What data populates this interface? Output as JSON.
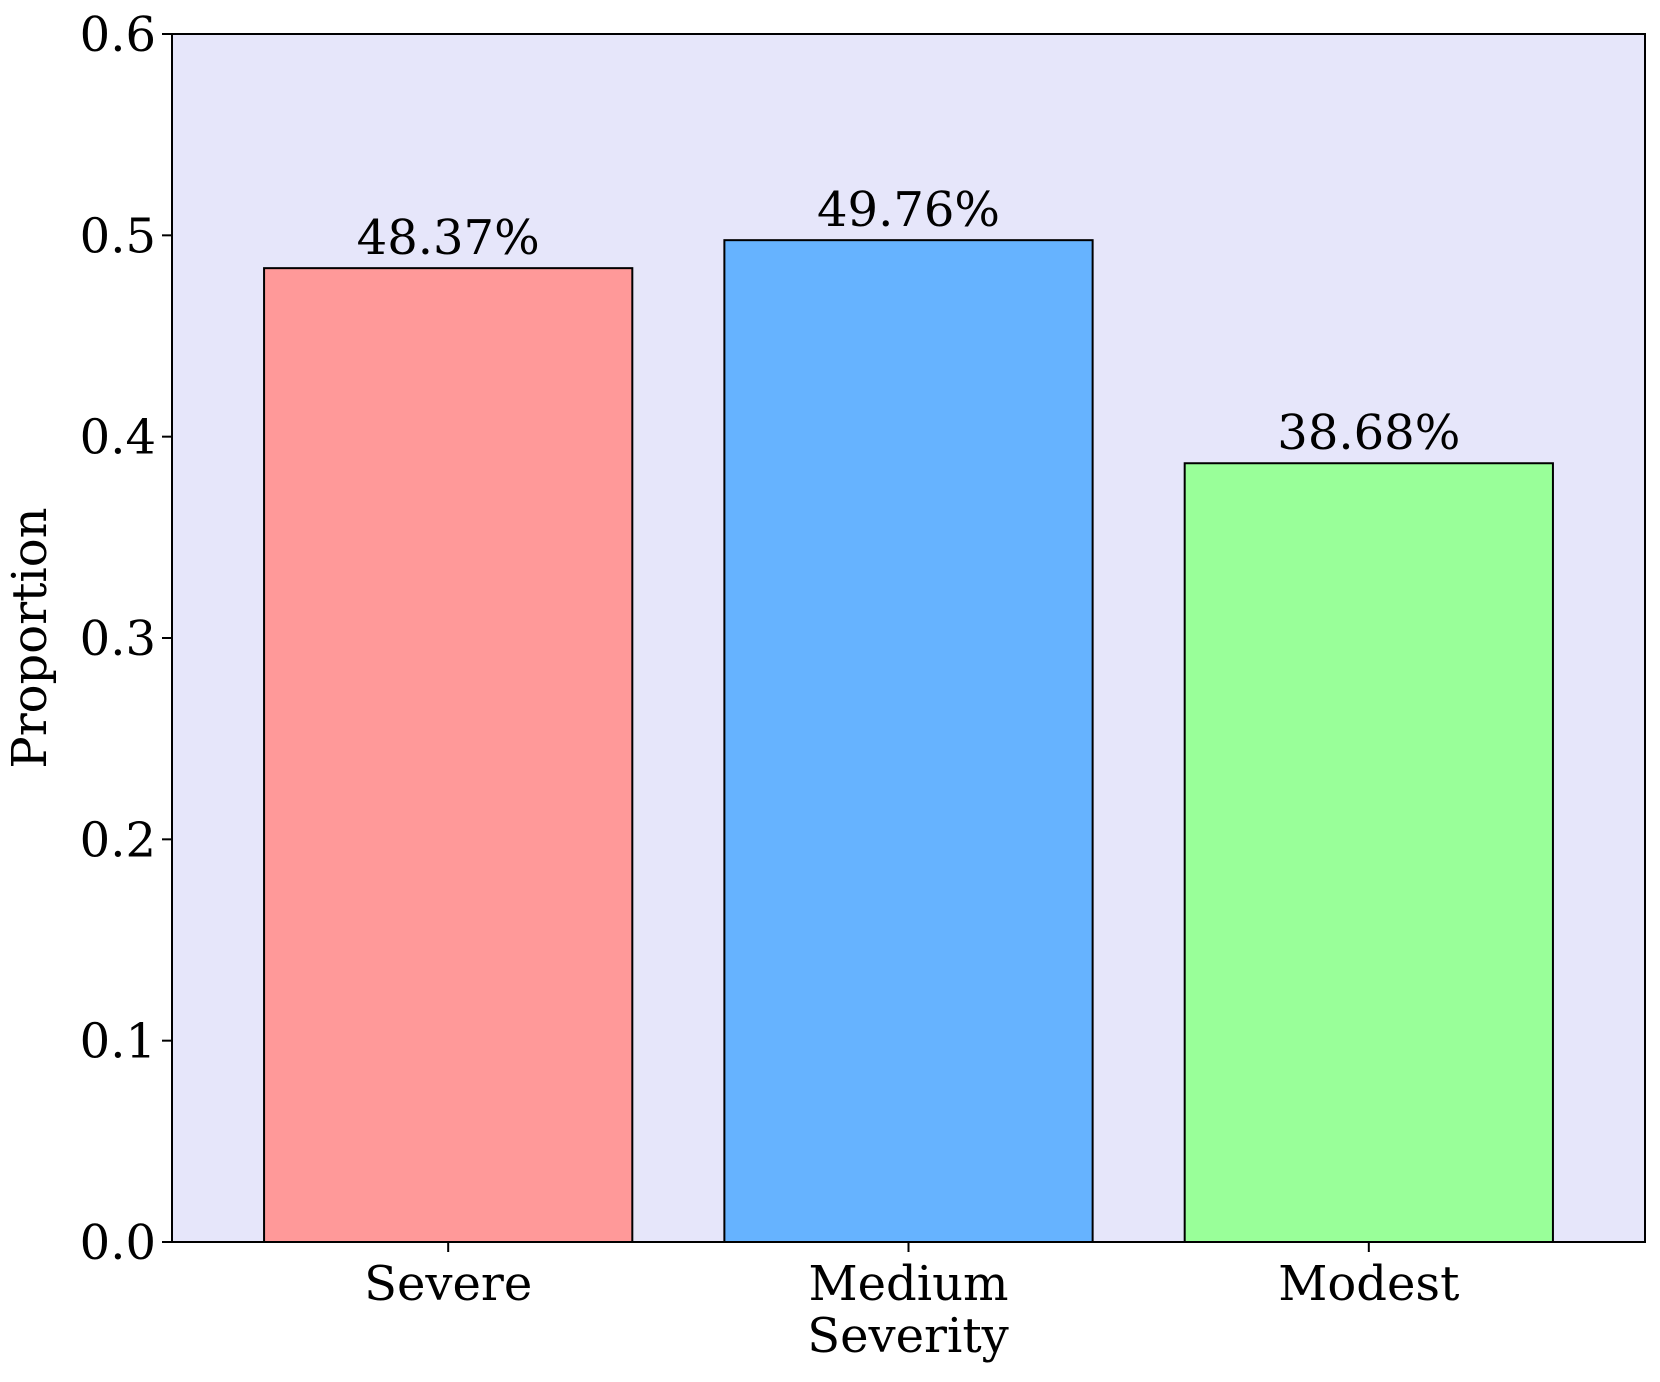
{
  "chart_data": {
    "type": "bar",
    "title": "",
    "categories": [
      "Severe",
      "Medium",
      "Modest"
    ],
    "values": [
      0.4837,
      0.4976,
      0.3868
    ],
    "data_labels": [
      "48.37%",
      "49.76%",
      "38.68%"
    ],
    "bar_colors": [
      "#ff9999",
      "#66b3ff",
      "#99ff99"
    ],
    "xlabel": "Severity",
    "ylabel": "Proportion",
    "ylim": [
      0,
      0.6
    ],
    "yticks": [
      "0.0",
      "0.1",
      "0.2",
      "0.3",
      "0.4",
      "0.5",
      "0.6"
    ],
    "plot_background": "#e6e6fa",
    "grid": false,
    "legend": false
  }
}
